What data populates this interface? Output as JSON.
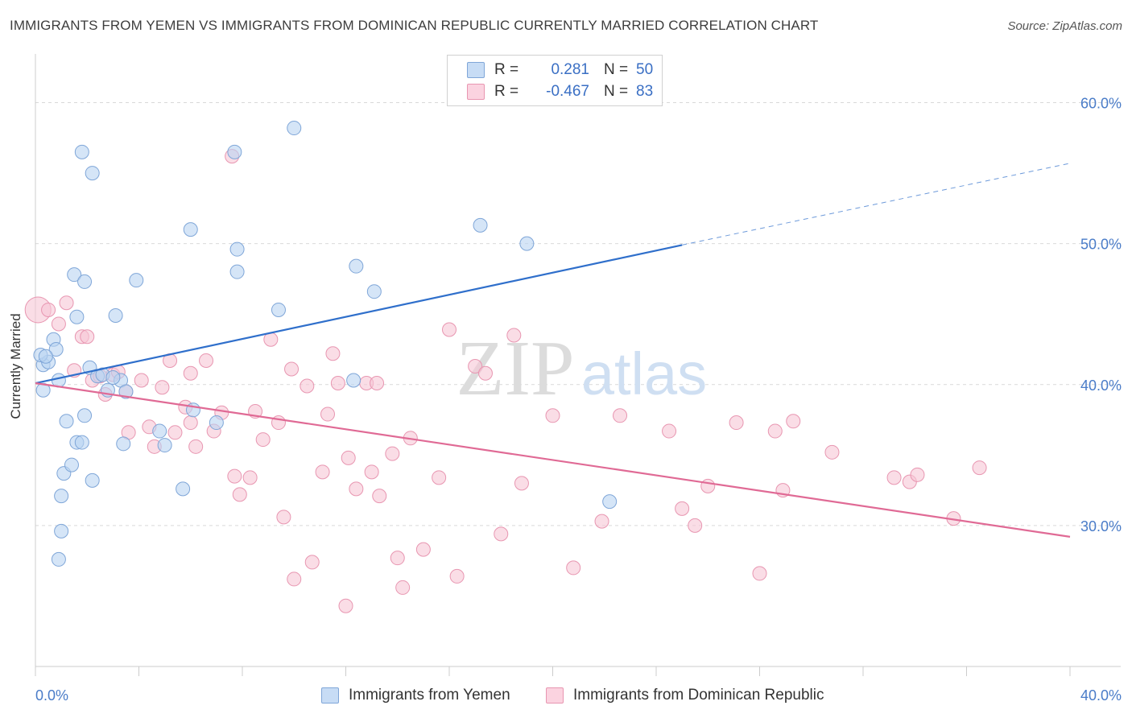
{
  "title": "IMMIGRANTS FROM YEMEN VS IMMIGRANTS FROM DOMINICAN REPUBLIC CURRENTLY MARRIED CORRELATION CHART",
  "source": "Source: ZipAtlas.com",
  "legend": {
    "rows": [
      {
        "r_label": "R =",
        "r_value": "0.281",
        "n_label": "N =",
        "n_value": "50"
      },
      {
        "r_label": "R =",
        "r_value": "-0.467",
        "n_label": "N =",
        "n_value": "83"
      }
    ]
  },
  "watermark": {
    "zip": "ZIP",
    "atlas": "atlas"
  },
  "colors": {
    "blue_fill": "#b9d3f2",
    "blue_stroke": "#7fa6d8",
    "blue_line": "#2f6fcb",
    "pink_fill": "#f7c6d5",
    "pink_stroke": "#e896b1",
    "pink_line": "#e06a95",
    "tick_text": "#4a7cc8",
    "grid": "#d9d9d9"
  },
  "chart_data": {
    "type": "scatter",
    "title": "IMMIGRANTS FROM YEMEN VS IMMIGRANTS FROM DOMINICAN REPUBLIC CURRENTLY MARRIED CORRELATION CHART",
    "xlabel": "",
    "ylabel": "Currently Married",
    "x_ticks": [
      "0.0%",
      "40.0%"
    ],
    "y_ticks": [
      "30.0%",
      "40.0%",
      "50.0%",
      "60.0%"
    ],
    "xlim": [
      0,
      40
    ],
    "ylim": [
      20,
      63
    ],
    "series": [
      {
        "name": "Immigrants from Yemen",
        "color": "#b9d3f2",
        "trend": {
          "x0": 0,
          "y0": 40.1,
          "x1": 25,
          "y1": 49.9,
          "dash_to_x": 40,
          "dash_to_y": 55.7
        },
        "points": [
          [
            0.3,
            41.4
          ],
          [
            0.3,
            39.6
          ],
          [
            0.5,
            41.6
          ],
          [
            0.7,
            43.2
          ],
          [
            0.8,
            42.5
          ],
          [
            0.9,
            40.3
          ],
          [
            1.2,
            37.4
          ],
          [
            1.1,
            33.7
          ],
          [
            1.4,
            34.3
          ],
          [
            1.6,
            35.9
          ],
          [
            1.8,
            35.9
          ],
          [
            1.9,
            37.8
          ],
          [
            2.1,
            41.2
          ],
          [
            2.2,
            33.2
          ],
          [
            2.4,
            40.6
          ],
          [
            2.6,
            40.7
          ],
          [
            2.8,
            39.6
          ],
          [
            3.3,
            40.3
          ],
          [
            3.5,
            39.5
          ],
          [
            3.4,
            35.8
          ],
          [
            3.1,
            44.9
          ],
          [
            3.9,
            47.4
          ],
          [
            4.8,
            36.7
          ],
          [
            5.0,
            35.7
          ],
          [
            5.7,
            32.6
          ],
          [
            6.0,
            51.0
          ],
          [
            6.1,
            38.2
          ],
          [
            7.0,
            37.3
          ],
          [
            7.7,
            56.5
          ],
          [
            7.8,
            49.6
          ],
          [
            7.8,
            48.0
          ],
          [
            9.4,
            45.3
          ],
          [
            10.0,
            58.2
          ],
          [
            12.3,
            40.3
          ],
          [
            12.4,
            48.4
          ],
          [
            13.1,
            46.6
          ],
          [
            17.2,
            51.3
          ],
          [
            19.0,
            50.0
          ],
          [
            22.2,
            31.7
          ],
          [
            0.9,
            27.6
          ],
          [
            1.0,
            29.6
          ],
          [
            1.0,
            32.1
          ],
          [
            1.5,
            47.8
          ],
          [
            1.9,
            47.3
          ],
          [
            2.2,
            55.0
          ],
          [
            1.8,
            56.5
          ],
          [
            0.2,
            42.1
          ],
          [
            0.4,
            42.0
          ],
          [
            1.6,
            44.8
          ],
          [
            3.0,
            40.5
          ]
        ]
      },
      {
        "name": "Immigrants from Dominican Republic",
        "color": "#f7c6d5",
        "trend": {
          "x0": 0,
          "y0": 40.1,
          "x1": 40,
          "y1": 29.2
        },
        "points": [
          [
            0.1,
            45.3
          ],
          [
            0.5,
            45.3
          ],
          [
            0.9,
            44.3
          ],
          [
            1.2,
            45.8
          ],
          [
            1.5,
            41.0
          ],
          [
            1.8,
            43.4
          ],
          [
            2.0,
            43.4
          ],
          [
            2.2,
            40.3
          ],
          [
            2.5,
            40.6
          ],
          [
            2.7,
            39.3
          ],
          [
            3.0,
            40.7
          ],
          [
            3.5,
            39.5
          ],
          [
            3.6,
            36.6
          ],
          [
            4.1,
            40.3
          ],
          [
            4.4,
            37.0
          ],
          [
            4.6,
            35.6
          ],
          [
            4.9,
            39.8
          ],
          [
            5.2,
            41.7
          ],
          [
            5.4,
            36.6
          ],
          [
            5.8,
            38.4
          ],
          [
            6.0,
            40.8
          ],
          [
            6.2,
            35.6
          ],
          [
            6.6,
            41.7
          ],
          [
            6.9,
            36.7
          ],
          [
            7.2,
            38.0
          ],
          [
            7.6,
            56.2
          ],
          [
            7.7,
            33.5
          ],
          [
            7.9,
            32.2
          ],
          [
            8.3,
            33.4
          ],
          [
            8.5,
            38.1
          ],
          [
            8.8,
            36.1
          ],
          [
            9.1,
            43.2
          ],
          [
            9.4,
            37.3
          ],
          [
            9.6,
            30.6
          ],
          [
            9.9,
            41.1
          ],
          [
            10.0,
            26.2
          ],
          [
            10.5,
            39.9
          ],
          [
            10.7,
            27.4
          ],
          [
            11.1,
            33.8
          ],
          [
            11.3,
            37.9
          ],
          [
            11.5,
            42.2
          ],
          [
            11.7,
            40.1
          ],
          [
            12.0,
            24.3
          ],
          [
            12.1,
            34.8
          ],
          [
            12.4,
            32.6
          ],
          [
            12.8,
            40.1
          ],
          [
            13.0,
            33.8
          ],
          [
            13.3,
            32.1
          ],
          [
            13.8,
            35.1
          ],
          [
            14.0,
            27.7
          ],
          [
            14.2,
            25.6
          ],
          [
            14.5,
            36.2
          ],
          [
            15.0,
            28.3
          ],
          [
            15.6,
            33.4
          ],
          [
            16.0,
            43.9
          ],
          [
            16.3,
            26.4
          ],
          [
            17.0,
            41.3
          ],
          [
            17.4,
            40.8
          ],
          [
            18.0,
            29.4
          ],
          [
            18.5,
            43.5
          ],
          [
            18.8,
            33.0
          ],
          [
            20.0,
            37.8
          ],
          [
            20.8,
            27.0
          ],
          [
            21.9,
            30.3
          ],
          [
            22.6,
            37.8
          ],
          [
            24.5,
            36.7
          ],
          [
            25.0,
            31.2
          ],
          [
            25.5,
            30.0
          ],
          [
            26.0,
            32.8
          ],
          [
            27.1,
            37.3
          ],
          [
            28.0,
            26.6
          ],
          [
            28.6,
            36.7
          ],
          [
            28.9,
            32.5
          ],
          [
            29.3,
            37.4
          ],
          [
            30.8,
            35.2
          ],
          [
            33.2,
            33.4
          ],
          [
            33.8,
            33.1
          ],
          [
            34.1,
            33.6
          ],
          [
            35.5,
            30.5
          ],
          [
            36.5,
            34.1
          ],
          [
            3.2,
            40.9
          ],
          [
            6.0,
            37.3
          ],
          [
            13.2,
            40.1
          ]
        ]
      }
    ]
  },
  "bottom_legend": {
    "blue_label": "Immigrants from Yemen",
    "pink_label": "Immigrants from Dominican Republic"
  }
}
